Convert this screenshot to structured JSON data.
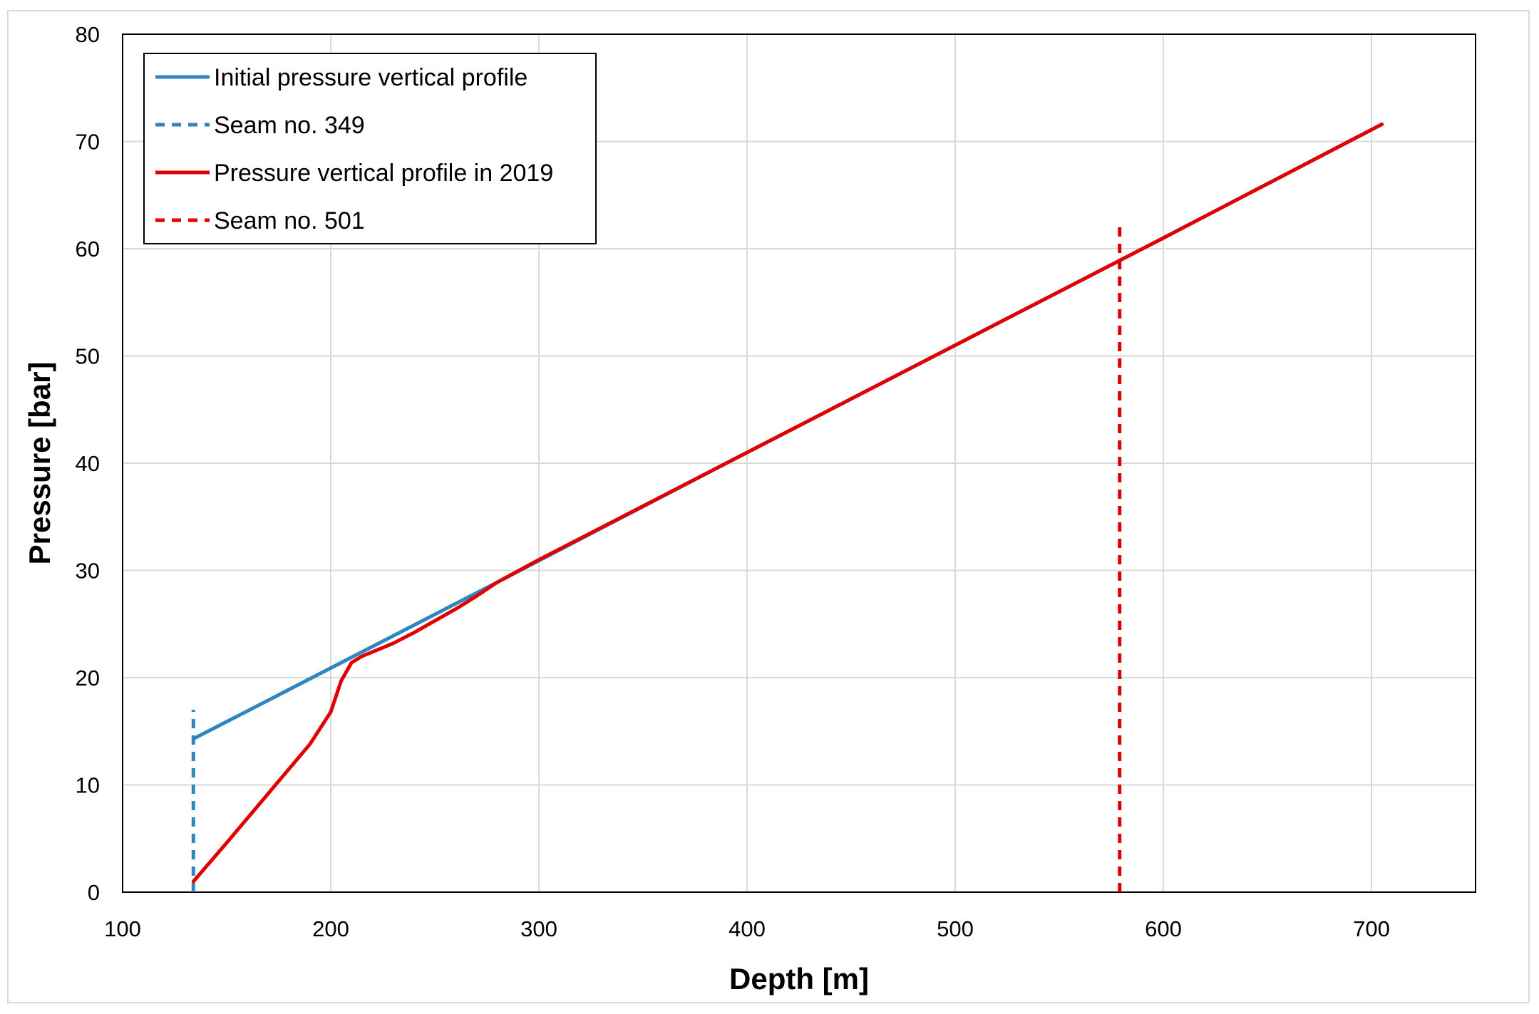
{
  "chart_data": {
    "type": "line",
    "title": "",
    "xlabel": "Depth [m]",
    "ylabel": "Pressure [bar]",
    "xlim": [
      100,
      750
    ],
    "ylim": [
      0,
      80
    ],
    "x_ticks": [
      100,
      200,
      300,
      400,
      500,
      600,
      700
    ],
    "y_ticks": [
      0,
      10,
      20,
      30,
      40,
      50,
      60,
      70,
      80
    ],
    "grid": true,
    "legend_position": "top-left",
    "series": [
      {
        "name": "Initial pressure vertical profile",
        "color": "#2e86c1",
        "style": "solid",
        "x": [
          134,
          200,
          280,
          400,
          500,
          600,
          705
        ],
        "y": [
          14.3,
          20.9,
          28.9,
          41.0,
          51.0,
          61.0,
          71.6
        ]
      },
      {
        "name": "Seam no. 349",
        "color": "#2e86c1",
        "style": "dashed",
        "x": [
          134,
          134
        ],
        "y": [
          0,
          17
        ]
      },
      {
        "name": "Pressure vertical profile in 2019",
        "color": "#e00000",
        "style": "solid",
        "x": [
          134,
          150,
          170,
          190,
          200,
          205,
          210,
          215,
          220,
          230,
          240,
          250,
          260,
          270,
          280,
          300,
          400,
          500,
          600,
          705
        ],
        "y": [
          1,
          4.6,
          9.2,
          13.8,
          16.8,
          19.7,
          21.4,
          22.0,
          22.4,
          23.2,
          24.2,
          25.3,
          26.4,
          27.6,
          28.9,
          31.0,
          41.0,
          51.0,
          61.0,
          71.6
        ]
      },
      {
        "name": "Seam no. 501",
        "color": "#e00000",
        "style": "dashed",
        "x": [
          579,
          579
        ],
        "y": [
          0,
          62
        ]
      }
    ]
  }
}
